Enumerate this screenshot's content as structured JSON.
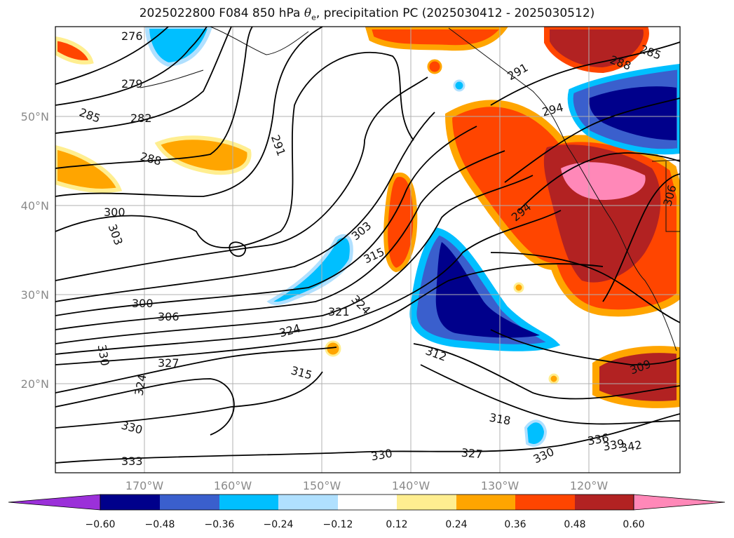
{
  "title": {
    "prefix": "2025022800 F084 850 hPa ",
    "theta": "θ",
    "sub": "e",
    "suffix": ", precipitation PC (2025030412 - 2025030512)"
  },
  "map": {
    "lon_labels": [
      "170°W",
      "160°W",
      "150°W",
      "140°W",
      "130°W",
      "120°W"
    ],
    "lat_labels": [
      "50°N",
      "40°N",
      "30°N",
      "20°N"
    ]
  },
  "contour_labels": [
    "276",
    "279",
    "282",
    "285",
    "288",
    "291",
    "291",
    "294",
    "294",
    "285",
    "288",
    "300",
    "303",
    "300",
    "306",
    "303",
    "315",
    "321",
    "324",
    "324",
    "327",
    "330",
    "324",
    "315",
    "312",
    "309",
    "318",
    "330",
    "327",
    "330",
    "333",
    "330",
    "336",
    "339",
    "342",
    "306"
  ],
  "colorbar": {
    "ticks": [
      "−0.60",
      "−0.48",
      "−0.36",
      "−0.24",
      "−0.12",
      "0.12",
      "0.24",
      "0.36",
      "0.48",
      "0.60"
    ],
    "colors": [
      "#9b30d9",
      "#00008b",
      "#3a5fcd",
      "#00bfff",
      "#b0e0ff",
      "#ffffff",
      "#ffee90",
      "#ffa500",
      "#ff4500",
      "#b22222",
      "#ff88b8"
    ]
  }
}
